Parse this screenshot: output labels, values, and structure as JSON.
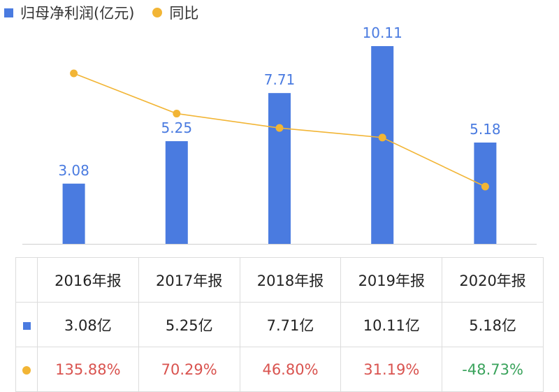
{
  "legend": {
    "bar_label": "归母净利润(亿元)",
    "line_label": "同比"
  },
  "colors": {
    "bar": "#4a7be0",
    "line": "#f2b535",
    "positive": "#d9534f",
    "negative": "#3aa35c",
    "bar_label": "#4a7be0"
  },
  "chart_data": {
    "type": "bar",
    "categories": [
      "2016年报",
      "2017年报",
      "2018年报",
      "2019年报",
      "2020年报"
    ],
    "series": [
      {
        "name": "归母净利润(亿元)",
        "type": "bar",
        "values": [
          3.08,
          5.25,
          7.71,
          10.11,
          5.18
        ],
        "labels": [
          "3.08",
          "5.25",
          "7.71",
          "10.11",
          "5.18"
        ]
      },
      {
        "name": "同比",
        "type": "line",
        "values": [
          135.88,
          70.29,
          46.8,
          31.19,
          -48.73
        ]
      }
    ],
    "ylim": [
      0,
      10.11
    ],
    "grid": false,
    "legend_position": "top-left"
  },
  "table": {
    "headers": [
      "2016年报",
      "2017年报",
      "2018年报",
      "2019年报",
      "2020年报"
    ],
    "profit_cells": [
      "3.08亿",
      "5.25亿",
      "7.71亿",
      "10.11亿",
      "5.18亿"
    ],
    "yoy_cells": [
      "135.88%",
      "70.29%",
      "46.80%",
      "31.19%",
      "-48.73%"
    ]
  }
}
